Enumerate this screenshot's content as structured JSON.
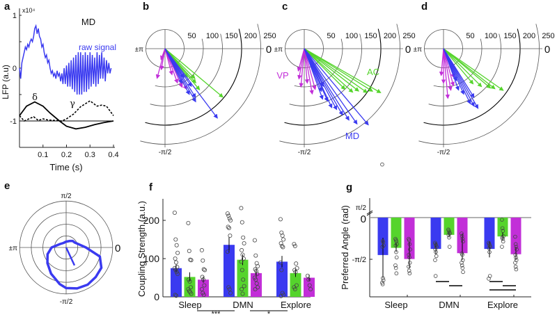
{
  "colors": {
    "MD": "#3a3af0",
    "AC": "#55d42c",
    "VP": "#c22fd8",
    "axis": "#222222",
    "grid": "#555555"
  },
  "panel_labels": {
    "a": "a",
    "b": "b",
    "c": "c",
    "d": "d",
    "e": "e",
    "f": "f",
    "g": "g"
  },
  "chart_data": [
    {
      "id": "a",
      "type": "line",
      "xlabel": "Time (s)",
      "ylabel": "LFP (a.u)",
      "y_multiplier": "x10⁴",
      "xlim": [
        0,
        0.4
      ],
      "ylim": [
        -1.5,
        1
      ],
      "xticks": [
        "0.1",
        "0.2",
        "0.3",
        "0.4"
      ],
      "yticks": [
        "1",
        "0",
        "-1"
      ],
      "annotations": {
        "region": "MD",
        "raw": "raw signal",
        "delta": "δ",
        "gamma": "γ"
      },
      "series": [
        {
          "name": "raw signal",
          "style": "solid-blue",
          "t": [
            0,
            0.005,
            0.01,
            0.015,
            0.02,
            0.025,
            0.03,
            0.035,
            0.04,
            0.045,
            0.05,
            0.055,
            0.06,
            0.065,
            0.07,
            0.075,
            0.08,
            0.085,
            0.09,
            0.095,
            0.1,
            0.105,
            0.11,
            0.115,
            0.12,
            0.125,
            0.13,
            0.135,
            0.14,
            0.145,
            0.15,
            0.155,
            0.16,
            0.165,
            0.17,
            0.175,
            0.18,
            0.185,
            0.19,
            0.195,
            0.2,
            0.205,
            0.21,
            0.215,
            0.22,
            0.225,
            0.23,
            0.235,
            0.24,
            0.245,
            0.25,
            0.255,
            0.26,
            0.265,
            0.27,
            0.275,
            0.28,
            0.285,
            0.29,
            0.295,
            0.3,
            0.305,
            0.31,
            0.315,
            0.32,
            0.325,
            0.33,
            0.335,
            0.34,
            0.345,
            0.35,
            0.355,
            0.36,
            0.365,
            0.37,
            0.375,
            0.38,
            0.385,
            0.39
          ],
          "v": [
            0,
            -0.2,
            0.1,
            0.2,
            0.3,
            0.4,
            0.35,
            0.45,
            0.4,
            0.5,
            0.55,
            0.5,
            0.6,
            0.75,
            0.8,
            0.65,
            0.75,
            0.6,
            0.55,
            0.4,
            0.45,
            0.3,
            0.2,
            0.25,
            0.1,
            0.15,
            0,
            -0.1,
            -0.05,
            -0.15,
            -0.1,
            -0.2,
            -0.05,
            -0.15,
            -0.1,
            -0.25,
            -0.1,
            -0.3,
            0,
            -0.3,
            0.05,
            -0.35,
            0.1,
            -0.35,
            0.15,
            -0.4,
            0.2,
            -0.45,
            0.25,
            -0.5,
            0.3,
            -0.5,
            0.3,
            -0.5,
            0.25,
            -0.45,
            0.3,
            -0.45,
            0.25,
            -0.4,
            0.3,
            -0.35,
            0.25,
            -0.3,
            0.2,
            -0.35,
            0.3,
            -0.3,
            0.25,
            -0.2,
            0.3,
            -0.2,
            0.2,
            -0.25,
            0.15,
            -0.1,
            0.1,
            -0.1,
            0
          ]
        },
        {
          "name": "delta",
          "style": "solid-black",
          "t": [
            0,
            0.03,
            0.065,
            0.1,
            0.13,
            0.17,
            0.2,
            0.24,
            0.28,
            0.32,
            0.36,
            0.4
          ],
          "v": [
            -0.9,
            -0.72,
            -0.64,
            -0.72,
            -0.85,
            -1.0,
            -1.1,
            -1.15,
            -1.12,
            -1.07,
            -1.03,
            -1.0
          ]
        },
        {
          "name": "gamma",
          "style": "dashed-black",
          "t": [
            0,
            0.02,
            0.04,
            0.06,
            0.08,
            0.1,
            0.12,
            0.15,
            0.18,
            0.2,
            0.23,
            0.26,
            0.3,
            0.33,
            0.35,
            0.37,
            0.4
          ],
          "v": [
            -0.9,
            -1.0,
            -0.96,
            -0.92,
            -0.99,
            -0.96,
            -0.98,
            -0.99,
            -1.0,
            -0.96,
            -0.87,
            -0.73,
            -0.62,
            -0.72,
            -0.7,
            -0.72,
            -0.9
          ]
        }
      ]
    },
    {
      "id": "polar",
      "type": "scatter",
      "ring_labels": [
        "50",
        "100",
        "150",
        "200",
        "250"
      ],
      "ring_values": [
        50,
        100,
        150,
        200,
        250
      ],
      "angle_labels": {
        "zero": "0",
        "pi": "±π",
        "neg_half_pi": "-π/2"
      },
      "legend_labels": {
        "VP": "VP",
        "AC": "AC",
        "MD": "MD"
      },
      "panels": [
        {
          "id": "b",
          "arrows": {
            "MD": [
              [
                -53,
                227
              ],
              [
                -60,
                160
              ],
              [
                -58,
                150
              ],
              [
                -62,
                135
              ],
              [
                -55,
                120
              ],
              [
                -64,
                100
              ],
              [
                -57,
                90
              ]
            ],
            "AC": [
              [
                -40,
                197
              ],
              [
                -50,
                140
              ],
              [
                -48,
                120
              ],
              [
                -45,
                110
              ],
              [
                -52,
                95
              ]
            ],
            "VP": [
              [
                -105,
                80
              ],
              [
                -100,
                55
              ],
              [
                -62,
                120
              ],
              [
                -66,
                110
              ],
              [
                -70,
                95
              ],
              [
                -75,
                70
              ],
              [
                -110,
                30
              ]
            ]
          }
        },
        {
          "id": "c",
          "arrows": {
            "MD": [
              [
                -50,
                260
              ],
              [
                -55,
                240
              ],
              [
                -58,
                220
              ],
              [
                -60,
                200
              ],
              [
                -62,
                180
              ],
              [
                -65,
                170
              ],
              [
                -66,
                150
              ],
              [
                -70,
                140
              ],
              [
                -68,
                120
              ],
              [
                -63,
                110
              ]
            ],
            "AC": [
              [
                -30,
                230
              ],
              [
                -32,
                210
              ],
              [
                -35,
                200
              ],
              [
                -38,
                180
              ],
              [
                -42,
                170
              ],
              [
                -45,
                150
              ]
            ],
            "VP": [
              [
                -80,
                120
              ],
              [
                -95,
                100
              ],
              [
                -100,
                80
              ],
              [
                -85,
                90
              ],
              [
                -75,
                110
              ],
              [
                -105,
                60
              ]
            ]
          }
        },
        {
          "id": "d",
          "arrows": {
            "MD": [
              [
                -60,
                180
              ],
              [
                -62,
                170
              ],
              [
                -64,
                160
              ],
              [
                -58,
                150
              ],
              [
                -66,
                130
              ],
              [
                -70,
                115
              ],
              [
                -68,
                90
              ]
            ],
            "AC": [
              [
                -35,
                190
              ],
              [
                -38,
                170
              ],
              [
                -40,
                160
              ],
              [
                -45,
                140
              ],
              [
                -50,
                120
              ]
            ],
            "VP": [
              [
                -85,
                130
              ],
              [
                -80,
                110
              ],
              [
                -75,
                100
              ],
              [
                -90,
                90
              ],
              [
                -70,
                80
              ],
              [
                -95,
                70
              ]
            ]
          }
        }
      ]
    },
    {
      "id": "e",
      "type": "line",
      "angle_labels": {
        "half_pi": "π/2",
        "neg_half_pi": "-π/2",
        "pi": "±π",
        "zero": "0"
      },
      "rings": 4,
      "curve": {
        "angle_deg": [
          0,
          15,
          30,
          45,
          60,
          90,
          120,
          150,
          180,
          200,
          220,
          240,
          260,
          270,
          285,
          300,
          315,
          330,
          345
        ],
        "r": [
          1.7,
          1.1,
          0.85,
          0.8,
          0.65,
          0.5,
          0.45,
          0.6,
          1.25,
          1.7,
          2.1,
          2.6,
          3.2,
          3.5,
          3.65,
          3.7,
          3.6,
          3.5,
          3.0
        ]
      },
      "mean_vector": {
        "angle_deg": -65,
        "r": 1.7
      }
    },
    {
      "id": "f",
      "type": "bar",
      "ylabel": "Coupling Strength (a.u.)",
      "ylim": [
        0,
        256
      ],
      "yticks": [
        "0",
        "100",
        "200"
      ],
      "ytick_values": [
        0,
        100,
        200
      ],
      "categories": [
        "Sleep",
        "DMN",
        "Explore"
      ],
      "series": [
        {
          "name": "MD",
          "values": [
            75,
            136,
            92
          ],
          "errors": [
            10,
            20,
            15
          ],
          "points": [
            [
              220,
              150,
              135,
              115,
              100,
              90,
              78,
              75,
              70,
              65,
              60,
              5,
              3
            ],
            [
              218,
              212,
              205,
              200,
              183,
              180,
              160,
              118,
              25,
              20,
              10
            ],
            [
              203,
              168,
              160,
              150,
              140,
              133,
              130,
              90,
              70,
              10,
              5,
              2
            ]
          ]
        },
        {
          "name": "AC",
          "values": [
            52,
            97,
            62
          ],
          "errors": [
            12,
            14,
            10
          ],
          "points": [
            [
              193,
              120,
              97,
              96,
              45,
              40,
              25,
              20,
              15,
              12,
              8
            ],
            [
              232,
              195,
              155,
              140,
              122,
              110,
              100,
              92,
              70,
              45,
              28,
              20,
              8
            ],
            [
              138,
              133,
              87,
              75,
              70,
              65,
              30,
              25,
              20
            ]
          ]
        },
        {
          "name": "VP",
          "values": [
            45,
            62,
            50
          ],
          "errors": [
            8,
            10,
            8
          ],
          "points": [
            [
              122,
              95,
              72,
              70,
              52,
              45,
              30,
              20,
              10,
              5
            ],
            [
              148,
              108,
              88,
              80,
              72,
              68,
              60,
              50,
              45,
              35,
              25,
              20
            ],
            [
              55,
              45,
              30,
              20
            ]
          ]
        }
      ],
      "significance": [
        {
          "from": 0,
          "to": 1,
          "label": "***"
        },
        {
          "from": 1,
          "to": 2,
          "label": "*"
        }
      ]
    },
    {
      "id": "g",
      "type": "bar",
      "ylabel": "Preferred Angle (rad)",
      "ylim": [
        -3.2,
        1.9
      ],
      "yticks": {
        "half_pi": "π/2",
        "zero": "0",
        "neg_half_pi": "-π/2"
      },
      "categories": [
        "Sleep",
        "DMN",
        "Explore"
      ],
      "series": [
        {
          "name": "MD",
          "values": [
            -1.41,
            -1.18,
            -1.18
          ],
          "err_lo": [
            -2.27,
            -1.4,
            -1.5
          ],
          "err_hi": [
            -0.76,
            -0.95,
            -0.9
          ],
          "points": [
            [
              2.0,
              -0.88,
              -0.92,
              -1.05,
              -1.1,
              -2.28,
              -2.36,
              -2.45,
              -2.51
            ],
            [
              -0.95,
              -1.0,
              -1.05,
              -1.1,
              -1.2,
              -1.3,
              -1.45,
              -1.6,
              -2.2
            ],
            [
              -0.95,
              -1.0,
              -1.05,
              -1.1,
              -1.15,
              -1.3,
              -2.2,
              -2.3
            ]
          ]
        },
        {
          "name": "AC",
          "values": [
            -1.14,
            -0.65,
            -0.71
          ],
          "err_lo": [
            -1.3,
            -0.75,
            -0.85
          ],
          "err_hi": [
            -0.95,
            -0.5,
            -0.55
          ],
          "points": [
            [
              -0.8,
              -0.85,
              -0.9,
              -1.0,
              -1.05,
              -1.3,
              -1.5,
              -1.8,
              -1.9,
              -2.1
            ],
            [
              -0.45,
              -0.5,
              -0.55,
              -0.6,
              -0.65,
              -0.75,
              -1.1
            ],
            [
              -0.08,
              -0.4,
              -0.5,
              -0.7,
              -0.75,
              -0.8,
              -0.9,
              -1.1
            ]
          ]
        },
        {
          "name": "VP",
          "values": [
            -1.56,
            -1.34,
            -1.38
          ],
          "err_lo": [
            -1.9,
            -1.6,
            -1.6
          ],
          "err_hi": [
            -0.9,
            -0.6,
            -1.1
          ],
          "points": [
            [
              -0.8,
              -0.85,
              -1.0,
              -1.2,
              -1.4,
              -1.5,
              -1.7,
              -1.85,
              -2.0,
              -2.1
            ],
            [
              -0.6,
              -0.7,
              -0.8,
              -0.9,
              -1.35,
              -1.4,
              -1.6,
              -1.7,
              -1.8,
              -1.9,
              -2.05
            ],
            [
              -0.72,
              -1.0,
              -1.1,
              -1.2,
              -1.4,
              -1.5,
              -1.6,
              -1.7,
              -1.85,
              -1.95
            ]
          ]
        }
      ],
      "significance": [
        {
          "category": 1,
          "pairs": [
            [
              0,
              1
            ],
            [
              1,
              2
            ]
          ]
        },
        {
          "category": 2,
          "pairs": [
            [
              0,
              1
            ],
            [
              1,
              2
            ],
            [
              0,
              2
            ]
          ]
        }
      ]
    }
  ]
}
